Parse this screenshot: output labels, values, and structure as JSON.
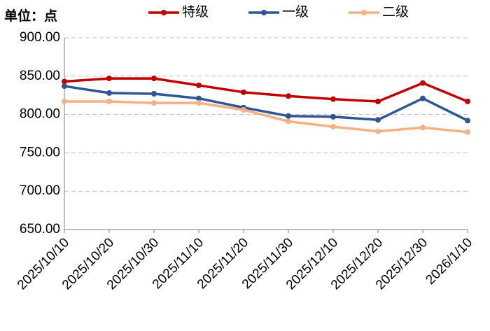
{
  "chart_data": {
    "type": "line",
    "unit_label": "单位：点",
    "categories": [
      "2025/10/10",
      "2025/10/20",
      "2025/10/30",
      "2025/11/10",
      "2025/11/20",
      "2025/11/30",
      "2025/12/10",
      "2025/12/20",
      "2025/12/30",
      "2026/1/10"
    ],
    "series": [
      {
        "name": "特级",
        "color": "#c00000",
        "values": [
          843,
          847,
          847,
          838,
          829,
          824,
          820,
          817,
          841,
          817
        ]
      },
      {
        "name": "一级",
        "color": "#2f5597",
        "values": [
          837,
          828,
          827,
          821,
          809,
          798,
          797,
          793,
          821,
          792
        ]
      },
      {
        "name": "二级",
        "color": "#f4b183",
        "values": [
          817,
          817,
          815,
          815,
          806,
          791,
          784,
          778,
          783,
          777
        ]
      }
    ],
    "ylim": [
      650,
      900
    ],
    "yticks": [
      {
        "value": 650,
        "label": "650.00"
      },
      {
        "value": 700,
        "label": "700.00"
      },
      {
        "value": 750,
        "label": "750.00"
      },
      {
        "value": 800,
        "label": "800.00"
      },
      {
        "value": 850,
        "label": "850.00"
      },
      {
        "value": 900,
        "label": "900.00"
      }
    ],
    "grid": true,
    "legend": "top"
  }
}
